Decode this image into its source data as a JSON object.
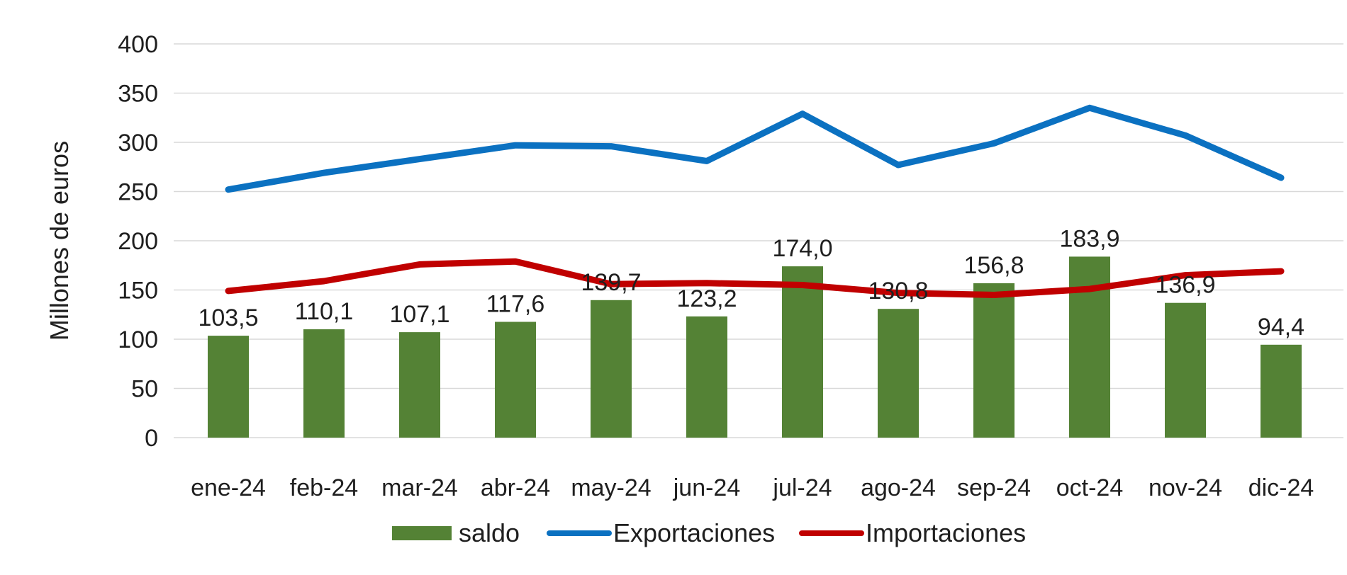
{
  "chart_data": {
    "type": "combo",
    "title": "",
    "xlabel": "",
    "ylabel": "Millones de euros",
    "ylim": [
      0,
      400
    ],
    "ytick_step": 50,
    "yticks": [
      "0",
      "50",
      "100",
      "150",
      "200",
      "250",
      "300",
      "350",
      "400"
    ],
    "grid": true,
    "gridline_color": "#d9d9d9",
    "background_color": "#ffffff",
    "text_color": "#1f1f1f",
    "legend_position": "bottom",
    "decimal_separator": ",",
    "categories": [
      "ene-24",
      "feb-24",
      "mar-24",
      "abr-24",
      "may-24",
      "jun-24",
      "jul-24",
      "ago-24",
      "sep-24",
      "oct-24",
      "nov-24",
      "dic-24"
    ],
    "series": [
      {
        "name": "saldo",
        "type": "bar",
        "color": "#548235",
        "values": [
          103.5,
          110.1,
          107.1,
          117.6,
          139.7,
          123.2,
          174.0,
          130.8,
          156.8,
          183.9,
          136.9,
          94.4
        ],
        "data_labels": [
          "103,5",
          "110,1",
          "107,1",
          "117,6",
          "139,7",
          "123,2",
          "174,0",
          "130,8",
          "156,8",
          "183,9",
          "136,9",
          "94,4"
        ]
      },
      {
        "name": "Exportaciones",
        "type": "line",
        "color": "#0b71c1",
        "values": [
          252,
          269,
          283,
          297,
          296,
          281,
          329,
          277,
          299,
          335,
          307,
          264
        ]
      },
      {
        "name": "Importaciones",
        "type": "line",
        "color": "#c00000",
        "values": [
          149,
          159,
          176,
          179,
          156,
          157,
          155,
          147,
          145,
          151,
          165,
          169
        ]
      }
    ]
  }
}
